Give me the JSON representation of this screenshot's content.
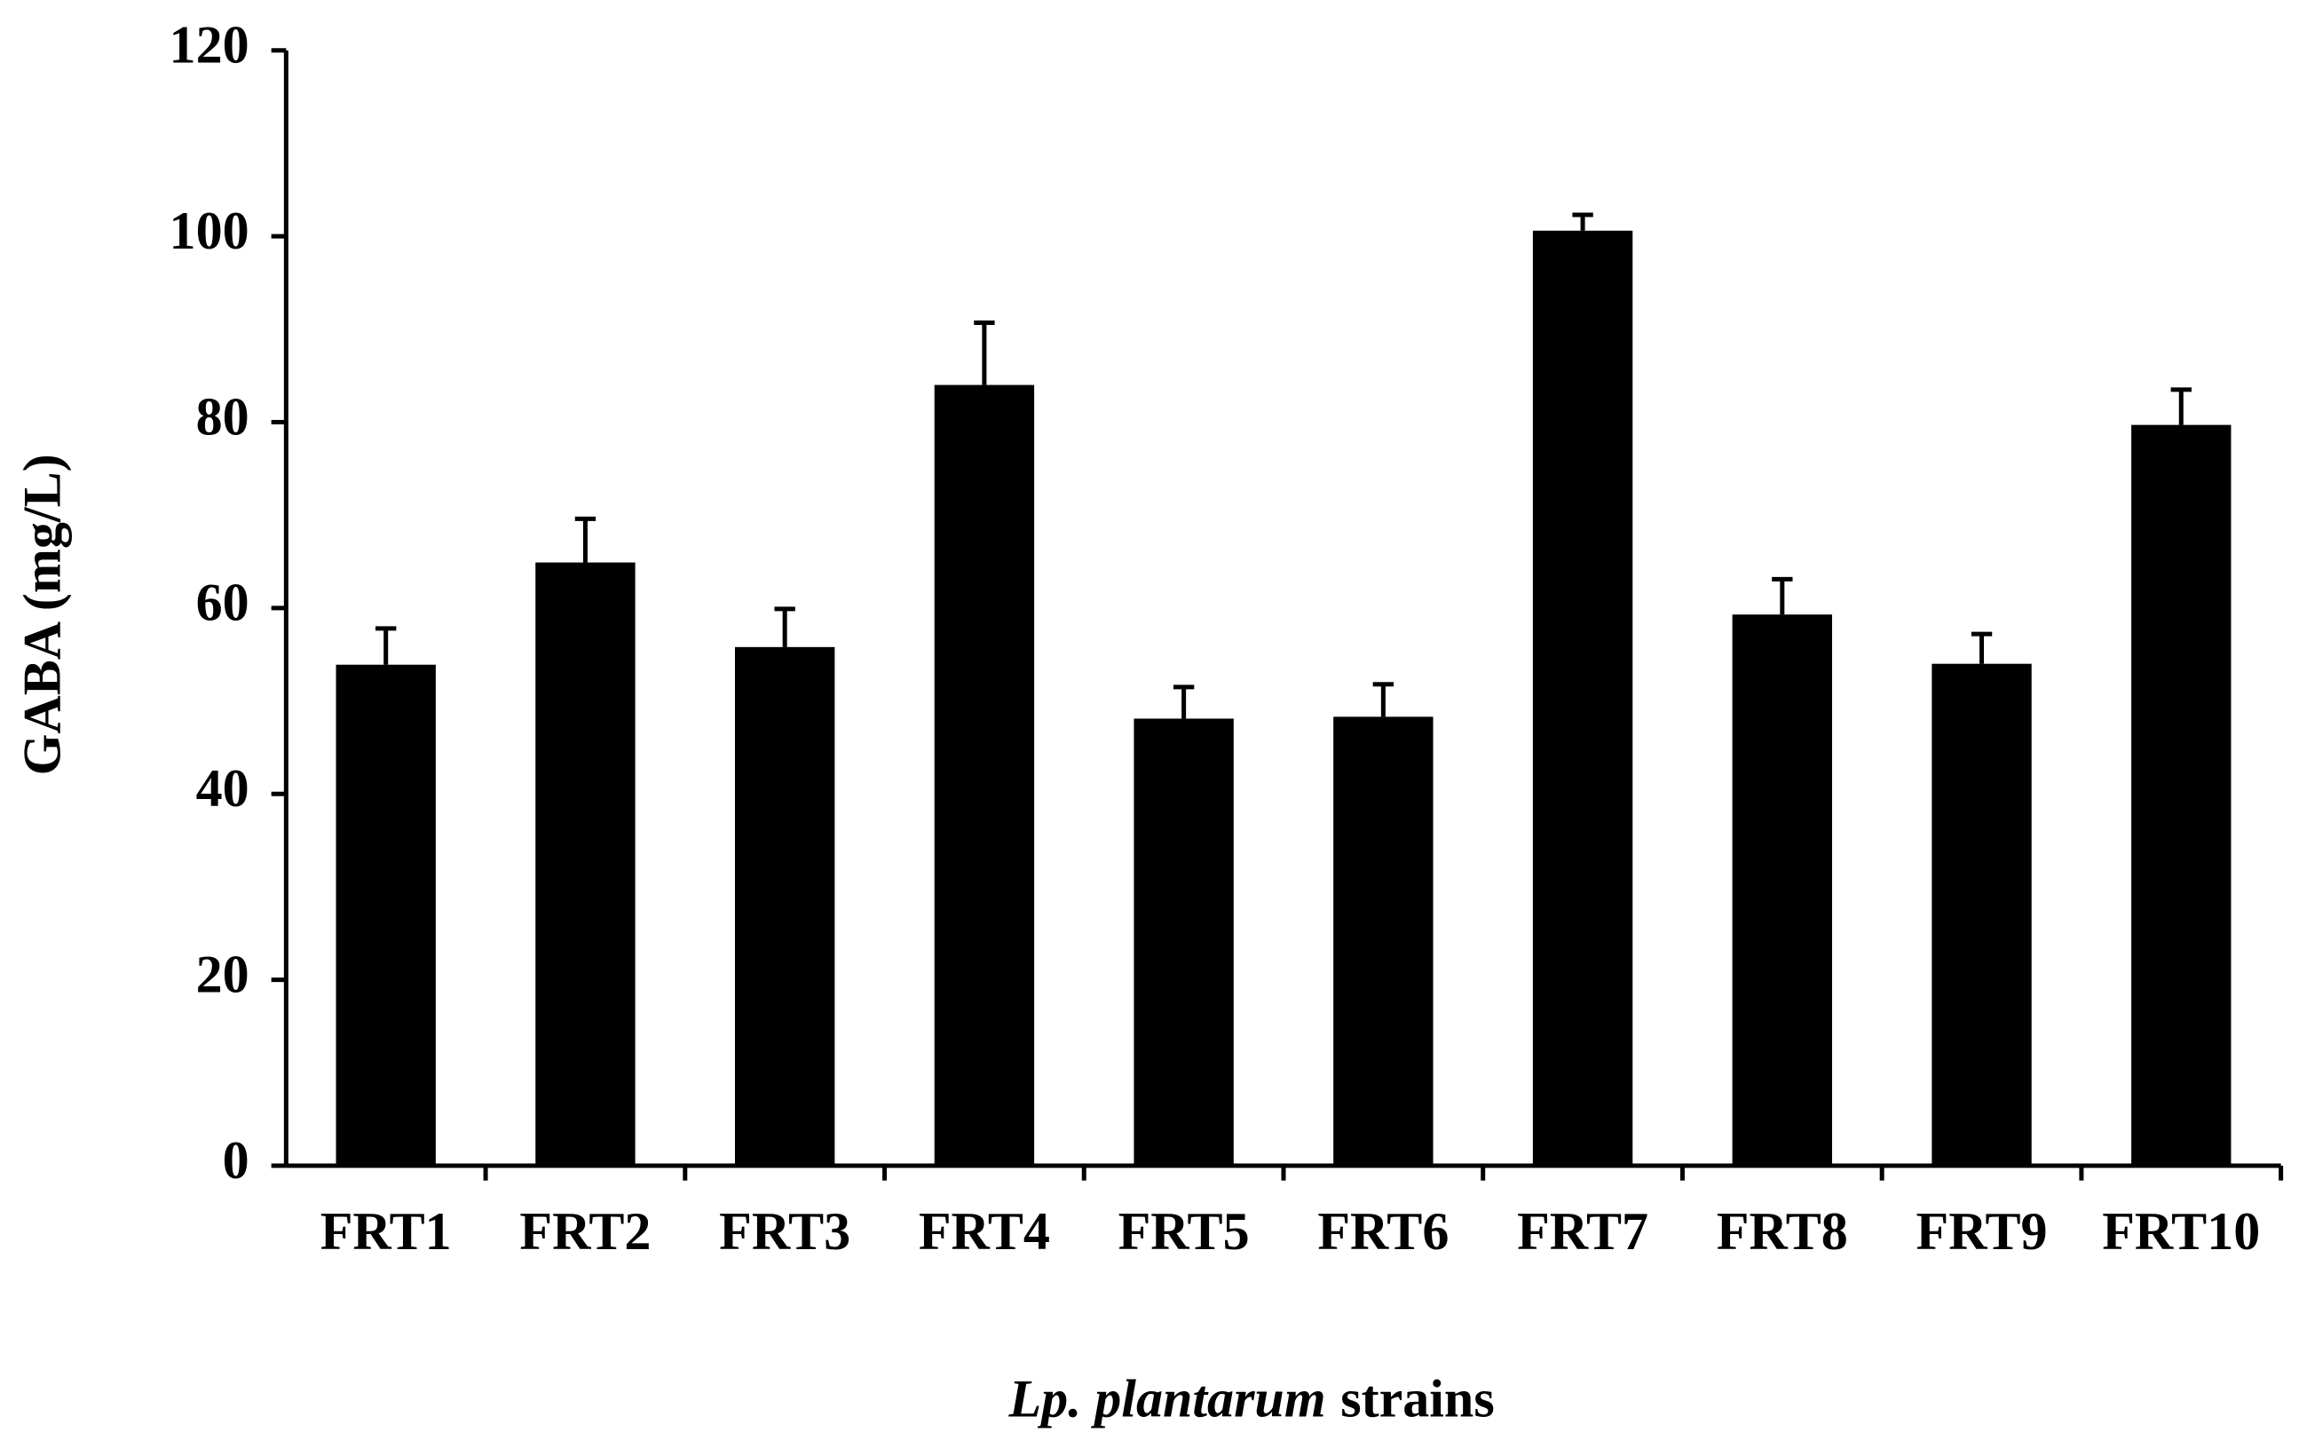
{
  "chart_data": {
    "type": "bar",
    "x_label": {
      "italic": "Lp. plantarum",
      "text": "strains"
    },
    "y_label": "GABA (mg/L)",
    "categories": [
      "FRT1",
      "FRT2",
      "FRT3",
      "FRT4",
      "FRT5",
      "FRT6",
      "FRT7",
      "FRT8",
      "FRT9",
      "FRT10"
    ],
    "values": [
      53.9,
      64.9,
      55.8,
      84.0,
      48.1,
      48.3,
      100.6,
      59.3,
      54.0,
      79.7
    ],
    "errors": [
      3.9,
      4.7,
      4.1,
      6.7,
      3.4,
      3.5,
      1.7,
      3.8,
      3.2,
      3.8
    ],
    "color": "#000000",
    "ylim": [
      0,
      120
    ],
    "yticks": [
      0,
      20,
      40,
      60,
      80,
      100,
      120
    ],
    "grid": false
  }
}
